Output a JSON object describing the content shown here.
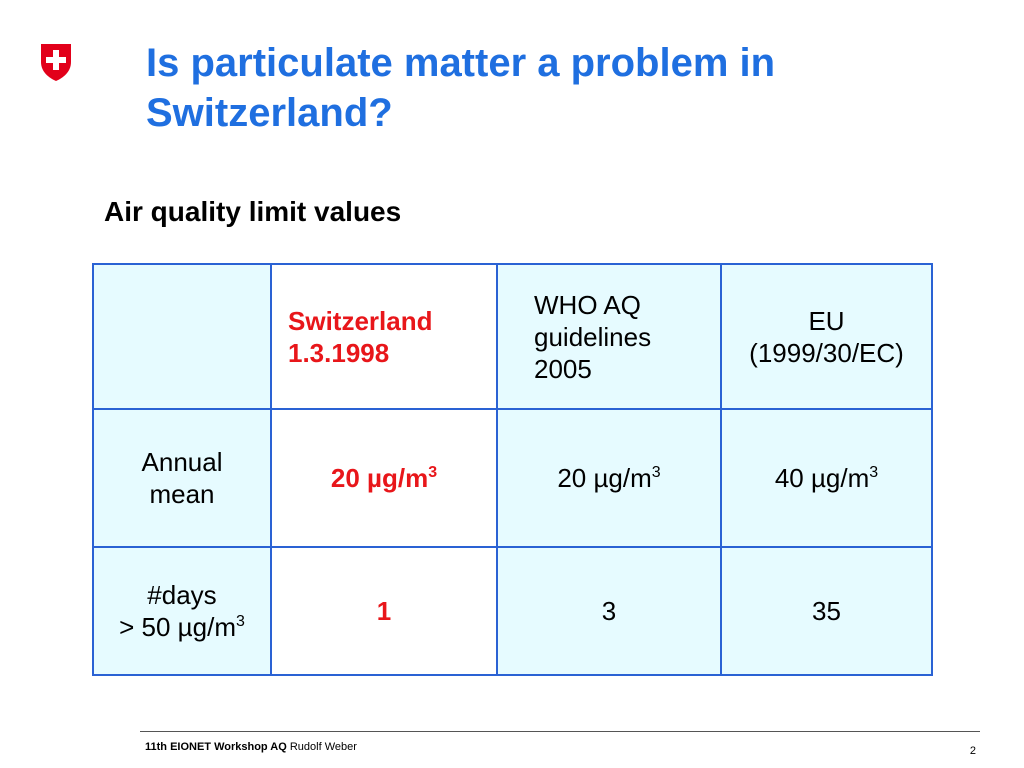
{
  "slide": {
    "title": "Is particulate matter a problem in Switzerland?",
    "subtitle": "Air quality limit values",
    "colors": {
      "title_blue": "#1f6fe0",
      "highlight_red": "#e8161a",
      "table_border": "#2a62d4",
      "cell_fill": "#e6fbff",
      "logo_red": "#e2001a"
    },
    "logo_icon": "swiss-cross-shield-icon"
  },
  "table": {
    "headers": {
      "empty": "",
      "switzerland_line1": "Switzerland",
      "switzerland_line2": "1.3.1998",
      "who_line1": "WHO AQ",
      "who_line2": "guidelines",
      "who_line3": "2005",
      "eu_line1": "EU",
      "eu_line2": "(1999/30/EC)"
    },
    "rows": [
      {
        "label_line1": "Annual",
        "label_line2": "mean",
        "switzerland": "20 µg/m",
        "switzerland_sup": "3",
        "who": "20 µg/m",
        "who_sup": "3",
        "eu": "40 µg/m",
        "eu_sup": "3"
      },
      {
        "label_line1": "#days",
        "label_line2": "> 50 µg/m",
        "label_sup": "3",
        "switzerland": "1",
        "who": "3",
        "eu": "35"
      }
    ]
  },
  "footer": {
    "event": "11th EIONET Workshop AQ",
    "author": "Rudolf Weber",
    "page_number": "2"
  }
}
